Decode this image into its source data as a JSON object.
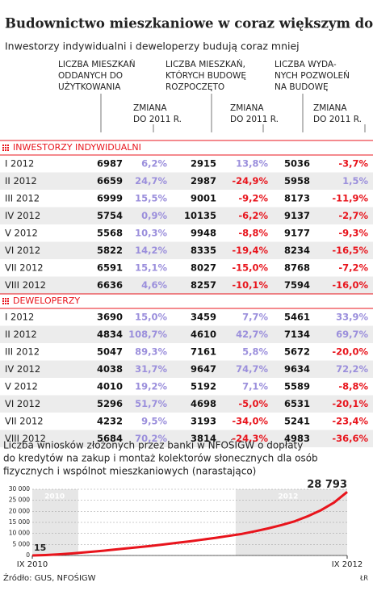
{
  "header": {
    "title": "Budownictwo mieszkaniowe w coraz większym dołku",
    "subtitle": "Inwestorzy indywidualni i deweloperzy budują coraz mniej"
  },
  "table": {
    "columns": [
      {
        "label": [
          "LICZBA MIESZKAŃ",
          "ODDANYCH DO",
          "UŻYTKOWANIA"
        ],
        "change": [
          "ZMIANA",
          "DO 2011 R."
        ]
      },
      {
        "label": [
          "LICZBA MIESZKAŃ,",
          "KTÓRYCH BUDOWĘ",
          "ROZPOCZĘTO"
        ],
        "change": [
          "ZMIANA",
          "DO 2011 R."
        ]
      },
      {
        "label": [
          "LICZBA WYDA-",
          "NYCH POZWOLEŃ",
          "NA BUDOWĘ"
        ],
        "change": [
          "ZMIANA",
          "DO 2011 R."
        ]
      }
    ],
    "sections": [
      {
        "name": "INWESTORZY INDYWIDUALNI",
        "rows": [
          [
            "I 2012",
            "6987",
            "6,2%",
            "2915",
            "13,8%",
            "5036",
            "-3,7%"
          ],
          [
            "II 2012",
            "6659",
            "24,7%",
            "2987",
            "-24,9%",
            "5958",
            "1,5%"
          ],
          [
            "III 2012",
            "6999",
            "15,5%",
            "9001",
            "-9,2%",
            "8173",
            "-11,9%"
          ],
          [
            "IV 2012",
            "5754",
            "0,9%",
            "10135",
            "-6,2%",
            "9137",
            "-2,7%"
          ],
          [
            "V 2012",
            "5568",
            "10,3%",
            "9948",
            "-8,8%",
            "9177",
            "-9,3%"
          ],
          [
            "VI 2012",
            "5822",
            "14,2%",
            "8335",
            "-19,4%",
            "8234",
            "-16,5%"
          ],
          [
            "VII 2012",
            "6591",
            "15,1%",
            "8027",
            "-15,0%",
            "8768",
            "-7,2%"
          ],
          [
            "VIII 2012",
            "6636",
            "4,6%",
            "8257",
            "-10,1%",
            "7594",
            "-16,0%"
          ]
        ]
      },
      {
        "name": "DEWELOPERZY",
        "rows": [
          [
            "I 2012",
            "3690",
            "15,0%",
            "3459",
            "7,7%",
            "5461",
            "33,9%"
          ],
          [
            "II 2012",
            "4834",
            "108,7%",
            "4610",
            "42,7%",
            "7134",
            "69,7%"
          ],
          [
            "III 2012",
            "5047",
            "89,3%",
            "7161",
            "5,8%",
            "5672",
            "-20,0%"
          ],
          [
            "IV 2012",
            "4038",
            "31,7%",
            "9647",
            "74,7%",
            "9634",
            "72,2%"
          ],
          [
            "V 2012",
            "4010",
            "19,2%",
            "5192",
            "7,1%",
            "5589",
            "-8,8%"
          ],
          [
            "VI 2012",
            "5296",
            "51,7%",
            "4698",
            "-5,0%",
            "6531",
            "-20,1%"
          ],
          [
            "VII 2012",
            "4232",
            "9,5%",
            "3193",
            "-34,0%",
            "5241",
            "-23,4%"
          ],
          [
            "VIII 2012",
            "5684",
            "70,2%",
            "3814",
            "-24,3%",
            "4983",
            "-36,6%"
          ]
        ]
      }
    ]
  },
  "chart_data": {
    "type": "line",
    "title": [
      "Liczba wniosków złożonych przez banki w NFOŚIGW o dopłaty",
      "do kredytów na zakup i montaż kolektorów słonecznych dla osób",
      "fizycznych i wspólnot mieszkaniowych (narastająco)"
    ],
    "categories": [
      "IX 2010",
      null,
      null,
      null,
      null,
      null,
      null,
      null,
      null,
      null,
      null,
      null,
      null,
      null,
      null,
      null,
      null,
      null,
      null,
      null,
      null,
      null,
      null,
      null,
      "IX 2012"
    ],
    "values": [
      15,
      200,
      500,
      900,
      1400,
      1900,
      2500,
      3100,
      3700,
      4300,
      5000,
      5700,
      6400,
      7200,
      8000,
      8900,
      9800,
      11000,
      12300,
      13800,
      15500,
      17800,
      20500,
      24000,
      28793
    ],
    "value_labels": [
      "15",
      null,
      null,
      null,
      null,
      null,
      null,
      null,
      null,
      null,
      null,
      null,
      null,
      null,
      null,
      null,
      null,
      null,
      null,
      null,
      null,
      null,
      null,
      null,
      "28 793"
    ],
    "color": "#e8141c",
    "annotations": [
      "2010",
      "2012"
    ],
    "ylim": [
      0,
      30000
    ],
    "yticks": [
      0,
      {
        "value": 5000,
        "label": "5 000"
      },
      {
        "value": 10000,
        "label": "10 000"
      },
      {
        "value": 15000,
        "label": "15 000"
      },
      {
        "value": 20000,
        "label": "20 000"
      },
      {
        "value": 25000,
        "label": "25 000"
      },
      {
        "value": 30000,
        "label": "30 000"
      }
    ],
    "grid": true
  },
  "footer": {
    "source": "Źródło: GUS, NFOŚIGW",
    "author": "ŁR"
  }
}
